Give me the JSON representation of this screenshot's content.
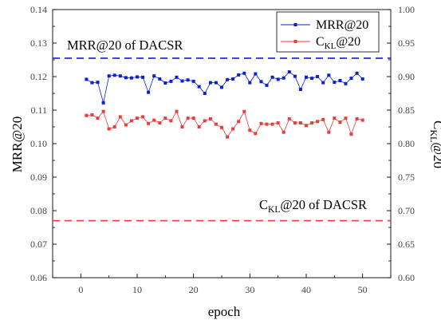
{
  "chart_data": {
    "type": "line",
    "xlabel": "epoch",
    "ylabel_left": "MRR@20",
    "ylabel_right": "C_KL@20",
    "ylabel_right_parts": {
      "base": "C",
      "sub": "KL",
      "rest": "@20"
    },
    "xlim": [
      -5,
      55
    ],
    "ylim_left": [
      0.06,
      0.14
    ],
    "ylim_right": [
      0.6,
      1.0
    ],
    "x_ticks": [
      0,
      10,
      20,
      30,
      40,
      50
    ],
    "y_ticks_left": [
      "0.06",
      "0.07",
      "0.08",
      "0.09",
      "0.10",
      "0.11",
      "0.12",
      "0.13",
      "0.14"
    ],
    "y_ticks_right": [
      "0.60",
      "0.65",
      "0.70",
      "0.75",
      "0.80",
      "0.85",
      "0.90",
      "0.95",
      "1.00"
    ],
    "grid": false,
    "legend_position": "top-right",
    "x": [
      1,
      2,
      3,
      4,
      5,
      6,
      7,
      8,
      9,
      10,
      11,
      12,
      13,
      14,
      15,
      16,
      17,
      18,
      19,
      20,
      21,
      22,
      23,
      24,
      25,
      26,
      27,
      28,
      29,
      30,
      31,
      32,
      33,
      34,
      35,
      36,
      37,
      38,
      39,
      40,
      41,
      42,
      43,
      44,
      45,
      46,
      47,
      48,
      49,
      50
    ],
    "series": [
      {
        "name": "MRR@20",
        "axis": "left",
        "color": "#0a1fd6",
        "marker": "square",
        "values": [
          0.1192,
          0.1182,
          0.1183,
          0.1122,
          0.1202,
          0.1204,
          0.1202,
          0.1197,
          0.1196,
          0.1199,
          0.1198,
          0.1153,
          0.1202,
          0.1193,
          0.1181,
          0.1186,
          0.1198,
          0.1187,
          0.119,
          0.1186,
          0.117,
          0.115,
          0.1182,
          0.1182,
          0.1168,
          0.1191,
          0.1193,
          0.1205,
          0.121,
          0.1182,
          0.1208,
          0.1185,
          0.1174,
          0.1198,
          0.1192,
          0.1196,
          0.1214,
          0.1201,
          0.1162,
          0.1198,
          0.1195,
          0.12,
          0.1182,
          0.1204,
          0.1183,
          0.1188,
          0.1179,
          0.1195,
          0.121,
          0.1193
        ]
      },
      {
        "name": "C_KL@20",
        "name_parts": {
          "base": "C",
          "sub": "KL",
          "rest": "@20"
        },
        "axis": "right",
        "color": "#f03a3a",
        "marker": "square",
        "values": [
          0.842,
          0.843,
          0.838,
          0.848,
          0.822,
          0.825,
          0.84,
          0.828,
          0.834,
          0.838,
          0.84,
          0.83,
          0.835,
          0.831,
          0.838,
          0.834,
          0.848,
          0.825,
          0.838,
          0.838,
          0.825,
          0.834,
          0.837,
          0.829,
          0.824,
          0.81,
          0.822,
          0.833,
          0.848,
          0.82,
          0.815,
          0.83,
          0.829,
          0.829,
          0.831,
          0.817,
          0.837,
          0.831,
          0.831,
          0.827,
          0.831,
          0.833,
          0.836,
          0.817,
          0.838,
          0.832,
          0.838,
          0.814,
          0.837,
          0.835
        ]
      }
    ],
    "reference_lines": [
      {
        "id": "mrr-ref",
        "axis": "left",
        "value": 0.1255,
        "color": "#0a1fd6",
        "label": "MRR@20 of DACSR"
      },
      {
        "id": "ckl-ref",
        "axis": "right",
        "value": 0.685,
        "color": "#f03a3a",
        "label": "C_KL@20 of DACSR",
        "label_parts": {
          "base": "C",
          "sub": "KL",
          "rest": "@20 of DACSR"
        }
      }
    ]
  }
}
